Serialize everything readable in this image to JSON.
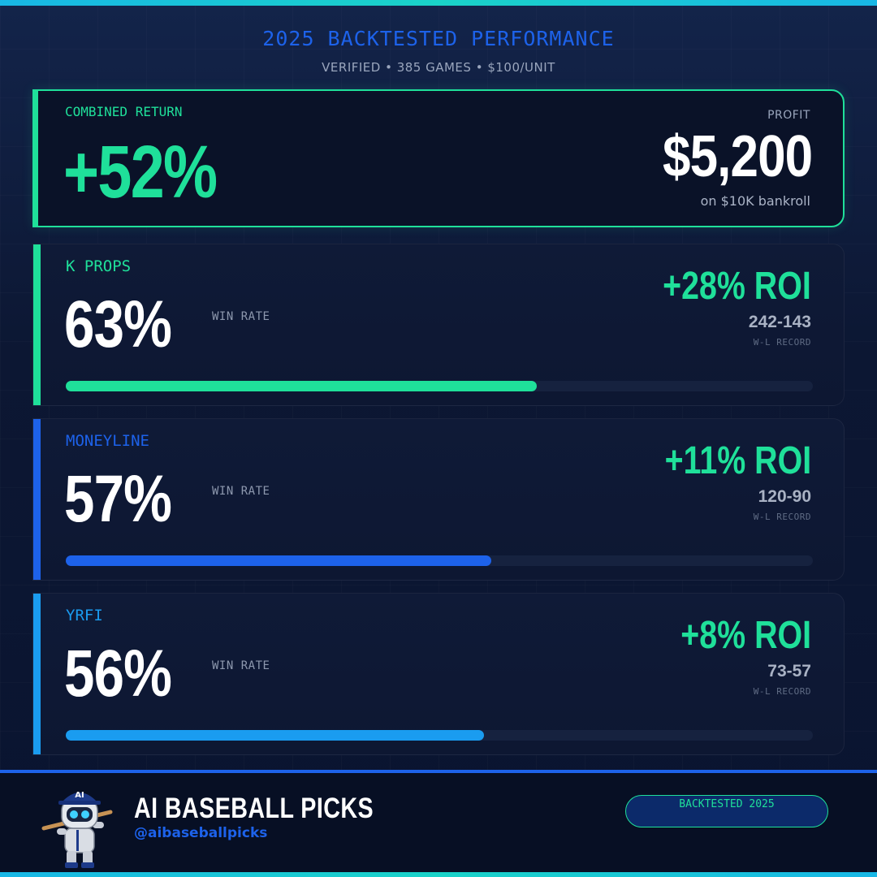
{
  "header": {
    "title": "2025 BACKTESTED PERFORMANCE",
    "subtitle": "VERIFIED • 385 GAMES • $100/UNIT"
  },
  "combined": {
    "label": "COMBINED RETURN",
    "value": "+52%",
    "profit_label": "PROFIT",
    "profit": "$5,200",
    "bankroll_note": "on $10K bankroll",
    "accent_color": "#1fe09a"
  },
  "stats": [
    {
      "name": "K PROPS",
      "win_pct": "63%",
      "win_rate_label": "WIN RATE",
      "roi": "+28% ROI",
      "record": "242-143",
      "record_label": "W-L RECORD",
      "color": "#1fe09a",
      "progress": 0.63
    },
    {
      "name": "MONEYLINE",
      "win_pct": "57%",
      "win_rate_label": "WIN RATE",
      "roi": "+11% ROI",
      "record": "120-90",
      "record_label": "W-L RECORD",
      "color": "#1d62ea",
      "progress": 0.57
    },
    {
      "name": "YRFI",
      "win_pct": "56%",
      "win_rate_label": "WIN RATE",
      "roi": "+8% ROI",
      "record": "73-57",
      "record_label": "W-L RECORD",
      "color": "#1a9cf0",
      "progress": 0.56
    }
  ],
  "footer": {
    "brand": "AI BASEBALL PICKS",
    "handle": "@aibaseballpicks",
    "badge": "BACKTESTED 2025",
    "robot_cap_text": "AI",
    "robot_icon": "robot-baseball-player-mascot"
  }
}
